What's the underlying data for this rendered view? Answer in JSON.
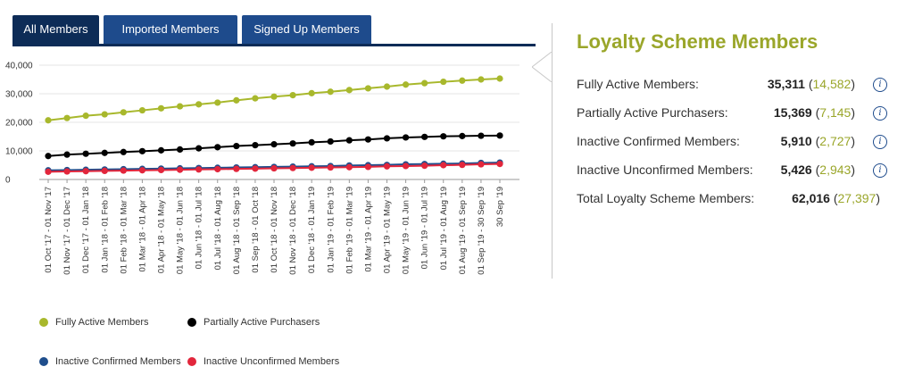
{
  "tabs": [
    {
      "label": "All Members",
      "active": true
    },
    {
      "label": "Imported Members",
      "active": false
    },
    {
      "label": "Signed Up Members",
      "active": false
    }
  ],
  "panel": {
    "title": "Loyalty Scheme Members",
    "rows": [
      {
        "label": "Fully Active Members:",
        "value": "35,311",
        "sub": "14,582",
        "info": true
      },
      {
        "label": "Partially Active Purchasers:",
        "value": "15,369",
        "sub": "7,145",
        "info": true
      },
      {
        "label": "Inactive Confirmed Members:",
        "value": "5,910",
        "sub": "2,727",
        "info": true
      },
      {
        "label": "Inactive Unconfirmed Members:",
        "value": "5,426",
        "sub": "2,943",
        "info": true
      },
      {
        "label": "Total Loyalty Scheme Members:",
        "value": "62,016",
        "sub": "27,397",
        "info": false
      }
    ]
  },
  "colors": {
    "fully_active": "#a8b82c",
    "partially_active": "#000000",
    "inactive_confirmed": "#1f4e8c",
    "inactive_unconfirmed": "#e2263c",
    "tab_bg": "#1e4b8c",
    "tab_active_bg": "#0d2c57",
    "accent": "#9aa62a"
  },
  "icons": {
    "info": "info-icon"
  },
  "chart_data": {
    "type": "line",
    "ylim": [
      0,
      40000
    ],
    "yticks": [
      "40,000",
      "30,000",
      "20,000",
      "10,000",
      "0"
    ],
    "categories": [
      "01 Oct '17 - 01 Nov '17",
      "01 Nov '17 - 01 Dec '17",
      "01 Dec '17 - 01 Jan '18",
      "01 Jan '18 - 01 Feb '18",
      "01 Feb '18 - 01 Mar '18",
      "01 Mar '18 - 01 Apr '18",
      "01 Apr '18 - 01 May '18",
      "01 May '18 - 01 Jun '18",
      "01 Jun '18 - 01 Jul '18",
      "01 Jul '18 - 01 Aug '18",
      "01 Aug '18 - 01 Sep '18",
      "01 Sep '18 - 01 Oct '18",
      "01 Oct '18 - 01 Nov '18",
      "01 Nov '18 - 01 Dec '18",
      "01 Dec '18 - 01 Jan '19",
      "01 Jan '19 - 01 Feb '19",
      "01 Feb '19 - 01 Mar '19",
      "01 Mar '19 - 01 Apr '19",
      "01 Apr '19 - 01 May '19",
      "01 May '19 - 01 Jun '19",
      "01 Jun '19 - 01 Jul '19",
      "01 Jul '19 - 01 Aug '19",
      "01 Aug '19 - 01 Sep '19",
      "01 Sep '19 - 30 Sep '19",
      "30 Sep '19"
    ],
    "series": [
      {
        "name": "Fully Active Members",
        "color": "#a8b82c",
        "values": [
          20700,
          21500,
          22300,
          22800,
          23500,
          24200,
          24900,
          25600,
          26300,
          26900,
          27700,
          28400,
          29000,
          29500,
          30200,
          30700,
          31300,
          31900,
          32500,
          33200,
          33700,
          34200,
          34600,
          35000,
          35311
        ]
      },
      {
        "name": "Partially Active Purchasers",
        "color": "#000000",
        "values": [
          8200,
          8700,
          9000,
          9300,
          9600,
          9900,
          10200,
          10500,
          10900,
          11300,
          11700,
          12000,
          12300,
          12600,
          13000,
          13300,
          13700,
          14000,
          14400,
          14700,
          14900,
          15100,
          15200,
          15300,
          15369
        ]
      },
      {
        "name": "Inactive Confirmed Members",
        "color": "#1f4e8c",
        "values": [
          3200,
          3300,
          3400,
          3500,
          3600,
          3700,
          3800,
          3900,
          4000,
          4100,
          4200,
          4300,
          4400,
          4500,
          4600,
          4700,
          4900,
          5000,
          5100,
          5300,
          5400,
          5500,
          5600,
          5800,
          5910
        ]
      },
      {
        "name": "Inactive Unconfirmed Members",
        "color": "#e2263c",
        "values": [
          2700,
          2800,
          2900,
          3000,
          3100,
          3200,
          3300,
          3400,
          3500,
          3600,
          3700,
          3800,
          3900,
          4000,
          4100,
          4200,
          4300,
          4400,
          4600,
          4700,
          4800,
          5000,
          5100,
          5300,
          5426
        ]
      }
    ],
    "legend": {
      "placement": "bottom"
    }
  }
}
